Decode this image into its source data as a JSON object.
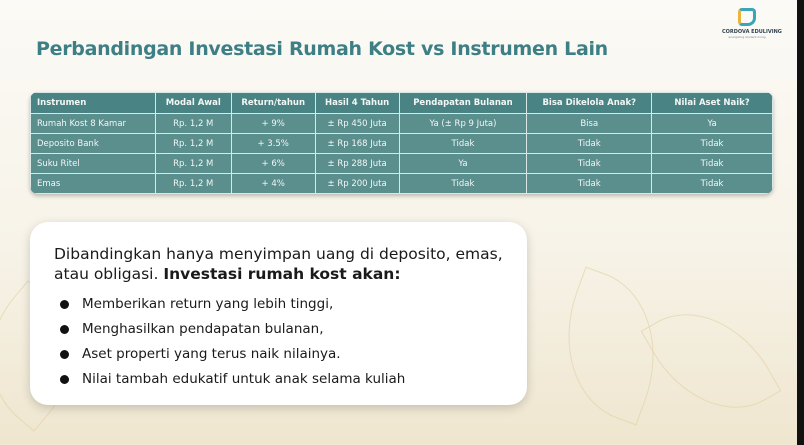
{
  "title": "Perbandingan Investasi Rumah Kost vs Instrumen Lain",
  "logo": {
    "name": "CORDOVA EDULIVING",
    "tagline": "energizing student living"
  },
  "table": {
    "headers": [
      "Instrumen",
      "Modal Awal",
      "Return/tahun",
      "Hasil 4 Tahun",
      "Pendapatan Bulanan",
      "Bisa Dikelola Anak?",
      "Nilai Aset Naik?"
    ],
    "rows": [
      [
        "Rumah Kost 8 Kamar",
        "Rp. 1,2 M",
        "+ 9%",
        "± Rp 450 Juta",
        "Ya (± Rp 9 Juta)",
        "Bisa",
        "Ya"
      ],
      [
        "Deposito Bank",
        "Rp. 1,2 M",
        "+ 3.5%",
        "± Rp 168 Juta",
        "Tidak",
        "Tidak",
        "Tidak"
      ],
      [
        "Suku Ritel",
        "Rp. 1,2 M",
        "+ 6%",
        "± Rp 288 Juta",
        "Ya",
        "Tidak",
        "Tidak"
      ],
      [
        "Emas",
        "Rp. 1,2 M",
        "+ 4%",
        "± Rp 200 Juta",
        "Tidak",
        "Tidak",
        "Tidak"
      ]
    ]
  },
  "card": {
    "intro": "Dibandingkan hanya menyimpan uang di deposito, emas, atau obligasi.",
    "intro_bold": "Investasi rumah kost akan:",
    "bullets": [
      "Memberikan return yang lebih tinggi,",
      "Menghasilkan pendapatan bulanan,",
      "Aset properti yang terus naik nilainya.",
      "Nilai tambah edukatif untuk anak selama kuliah"
    ]
  }
}
